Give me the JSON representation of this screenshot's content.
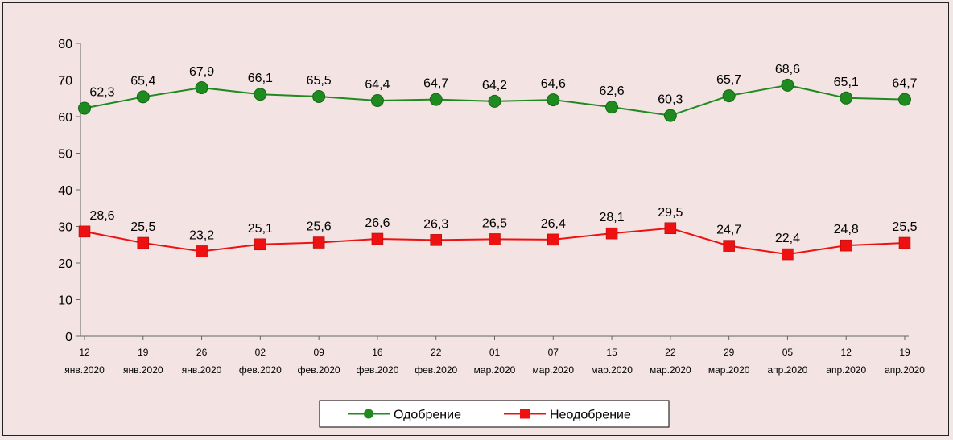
{
  "chart_data": {
    "type": "line",
    "title": "",
    "xlabel": "",
    "ylabel": "",
    "ylim": [
      0,
      80
    ],
    "yticks": [
      0,
      10,
      20,
      30,
      40,
      50,
      60,
      70,
      80
    ],
    "categories": [
      [
        "12",
        "янв.2020"
      ],
      [
        "19",
        "янв.2020"
      ],
      [
        "26",
        "янв.2020"
      ],
      [
        "02",
        "фев.2020"
      ],
      [
        "09",
        "фев.2020"
      ],
      [
        "16",
        "фев.2020"
      ],
      [
        "22",
        "фев.2020"
      ],
      [
        "01",
        "мар.2020"
      ],
      [
        "07",
        "мар.2020"
      ],
      [
        "15",
        "мар.2020"
      ],
      [
        "22",
        "мар.2020"
      ],
      [
        "29",
        "мар.2020"
      ],
      [
        "05",
        "апр.2020"
      ],
      [
        "12",
        "апр.2020"
      ],
      [
        "19",
        "апр.2020"
      ]
    ],
    "series": [
      {
        "name": "Одобрение",
        "color": "#1f8a1f",
        "marker": "circle",
        "values": [
          62.3,
          65.4,
          67.9,
          66.1,
          65.5,
          64.4,
          64.7,
          64.2,
          64.6,
          62.6,
          60.3,
          65.7,
          68.6,
          65.1,
          64.7
        ],
        "labels": [
          "62,3",
          "65,4",
          "67,9",
          "66,1",
          "65,5",
          "64,4",
          "64,7",
          "64,2",
          "64,6",
          "62,6",
          "60,3",
          "65,7",
          "68,6",
          "65,1",
          "64,7"
        ]
      },
      {
        "name": "Неодобрение",
        "color": "#ee1111",
        "marker": "square",
        "values": [
          28.6,
          25.5,
          23.2,
          25.1,
          25.6,
          26.6,
          26.3,
          26.5,
          26.4,
          28.1,
          29.5,
          24.7,
          22.4,
          24.8,
          25.5
        ],
        "labels": [
          "28,6",
          "25,5",
          "23,2",
          "25,1",
          "25,6",
          "26,6",
          "26,3",
          "26,5",
          "26,4",
          "28,1",
          "29,5",
          "24,7",
          "22,4",
          "24,8",
          "25,5"
        ]
      }
    ],
    "grid": false,
    "legend": "bottom-center"
  }
}
